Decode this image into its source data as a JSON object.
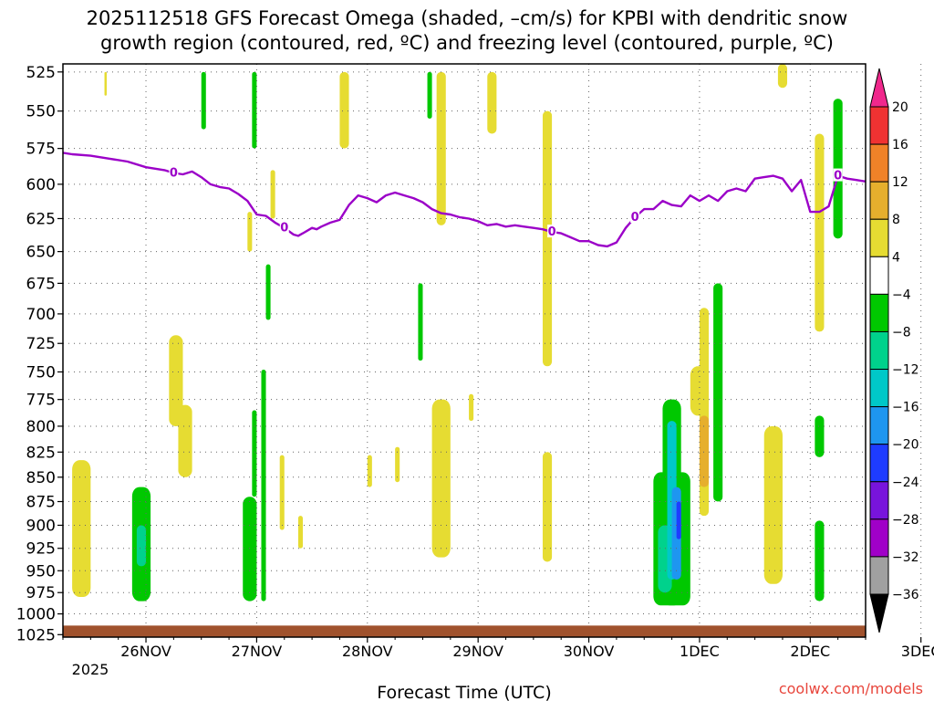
{
  "chart_data": {
    "type": "heatmap",
    "title_lines": [
      "2025112518 GFS Forecast Omega (shaded, –cm/s) for KPBI with dendritic snow",
      "growth region (contoured, red, ºC) and freezing level (contoured, purple, ºC)"
    ],
    "xlabel": "Forecast Time (UTC)",
    "credit": "coolwx.com/models",
    "x_ticks": [
      "26NOV",
      "27NOV",
      "28NOV",
      "29NOV",
      "30NOV",
      "1DEC",
      "2DEC",
      "3DEC"
    ],
    "x_tick_year": "2025",
    "x_range_hours_since_26NOV_00Z": [
      -18,
      156
    ],
    "y_ticks": [
      525,
      550,
      575,
      600,
      625,
      650,
      675,
      700,
      725,
      750,
      775,
      800,
      825,
      850,
      875,
      900,
      925,
      950,
      975,
      1000,
      1025
    ],
    "y_range_hPa": [
      520,
      1028
    ],
    "y_scale": "log-pressure (inverted)",
    "grid": "dotted",
    "colorbar": {
      "labels": [
        "20",
        "16",
        "12",
        "8",
        "4",
        "−4",
        "−8",
        "−12",
        "−16",
        "−20",
        "−24",
        "−28",
        "−32",
        "−36"
      ],
      "bins": [
        {
          "range": [
            16,
            20
          ],
          "color": "#f03232"
        },
        {
          "range": [
            12,
            16
          ],
          "color": "#f08228"
        },
        {
          "range": [
            8,
            12
          ],
          "color": "#e6af2d"
        },
        {
          "range": [
            4,
            8
          ],
          "color": "#e6dc32"
        },
        {
          "range": [
            -4,
            4
          ],
          "color": "#ffffff"
        },
        {
          "range": [
            -8,
            -4
          ],
          "color": "#00c800"
        },
        {
          "range": [
            -12,
            -8
          ],
          "color": "#00d28c"
        },
        {
          "range": [
            -16,
            -12
          ],
          "color": "#00c8c8"
        },
        {
          "range": [
            -20,
            -16
          ],
          "color": "#1e96f0"
        },
        {
          "range": [
            -24,
            -20
          ],
          "color": "#1e3cff"
        },
        {
          "range": [
            -28,
            -24
          ],
          "color": "#7814dc"
        },
        {
          "range": [
            -32,
            -28
          ],
          "color": "#a000c8"
        },
        {
          "range": [
            -36,
            -32
          ],
          "color": "#a0a0a0"
        }
      ],
      "top_arrow_color": "#f0288c",
      "bottom_arrow_color": "#000000"
    },
    "freezing_level": {
      "label": "0",
      "color": "#9b00c8",
      "points": [
        [
          -18,
          578
        ],
        [
          -16,
          579
        ],
        [
          -12,
          580
        ],
        [
          -8,
          582
        ],
        [
          -4,
          584
        ],
        [
          0,
          588
        ],
        [
          4,
          590
        ],
        [
          6,
          592
        ],
        [
          8,
          593
        ],
        [
          10,
          591
        ],
        [
          12,
          595
        ],
        [
          14,
          600
        ],
        [
          16,
          602
        ],
        [
          18,
          603
        ],
        [
          20,
          607
        ],
        [
          22,
          612
        ],
        [
          24,
          622
        ],
        [
          26,
          623
        ],
        [
          28,
          628
        ],
        [
          30,
          632
        ],
        [
          32,
          637
        ],
        [
          33,
          638
        ],
        [
          34,
          636
        ],
        [
          36,
          632
        ],
        [
          37,
          633
        ],
        [
          38,
          631
        ],
        [
          40,
          628
        ],
        [
          42,
          626
        ],
        [
          44,
          615
        ],
        [
          46,
          608
        ],
        [
          48,
          610
        ],
        [
          50,
          613
        ],
        [
          52,
          608
        ],
        [
          54,
          606
        ],
        [
          56,
          608
        ],
        [
          58,
          610
        ],
        [
          60,
          613
        ],
        [
          62,
          618
        ],
        [
          64,
          621
        ],
        [
          66,
          622
        ],
        [
          68,
          624
        ],
        [
          70,
          625
        ],
        [
          72,
          627
        ],
        [
          74,
          630
        ],
        [
          76,
          629
        ],
        [
          78,
          631
        ],
        [
          80,
          630
        ],
        [
          82,
          631
        ],
        [
          84,
          632
        ],
        [
          86,
          633
        ],
        [
          88,
          635
        ],
        [
          90,
          636
        ],
        [
          92,
          639
        ],
        [
          94,
          642
        ],
        [
          96,
          642
        ],
        [
          98,
          645
        ],
        [
          100,
          646
        ],
        [
          102,
          643
        ],
        [
          104,
          632
        ],
        [
          106,
          624
        ],
        [
          108,
          618
        ],
        [
          110,
          618
        ],
        [
          112,
          612
        ],
        [
          114,
          615
        ],
        [
          116,
          616
        ],
        [
          118,
          608
        ],
        [
          120,
          612
        ],
        [
          122,
          608
        ],
        [
          124,
          612
        ],
        [
          126,
          605
        ],
        [
          128,
          603
        ],
        [
          130,
          605
        ],
        [
          132,
          596
        ],
        [
          134,
          595
        ],
        [
          136,
          594
        ],
        [
          138,
          596
        ],
        [
          140,
          605
        ],
        [
          142,
          597
        ],
        [
          144,
          620
        ],
        [
          146,
          620
        ],
        [
          148,
          616
        ],
        [
          150,
          594
        ],
        [
          152,
          596
        ],
        [
          154,
          597
        ],
        [
          156,
          598
        ]
      ]
    },
    "omega_patches": [
      {
        "t": [
          -16,
          -12
        ],
        "p": [
          833,
          980
        ],
        "value": 6
      },
      {
        "t": [
          -9,
          -8.5
        ],
        "p": [
          525,
          540
        ],
        "value": 6
      },
      {
        "t": [
          5,
          8
        ],
        "p": [
          718,
          800
        ],
        "value": 6
      },
      {
        "t": [
          7,
          10
        ],
        "p": [
          780,
          850
        ],
        "value": 6
      },
      {
        "t": [
          -3,
          1
        ],
        "p": [
          860,
          985
        ],
        "value": -6
      },
      {
        "t": [
          -2,
          0
        ],
        "p": [
          900,
          945
        ],
        "value": -10
      },
      {
        "t": [
          12,
          13
        ],
        "p": [
          525,
          562
        ],
        "value": -6
      },
      {
        "t": [
          23,
          24
        ],
        "p": [
          525,
          575
        ],
        "value": -6
      },
      {
        "t": [
          21,
          24
        ],
        "p": [
          870,
          985
        ],
        "value": -6
      },
      {
        "t": [
          23,
          24
        ],
        "p": [
          785,
          870
        ],
        "value": -6
      },
      {
        "t": [
          25,
          26
        ],
        "p": [
          748,
          985
        ],
        "value": -6
      },
      {
        "t": [
          22,
          23
        ],
        "p": [
          620,
          650
        ],
        "value": 6
      },
      {
        "t": [
          26,
          27
        ],
        "p": [
          660,
          705
        ],
        "value": -6
      },
      {
        "t": [
          27,
          28
        ],
        "p": [
          590,
          625
        ],
        "value": 6
      },
      {
        "t": [
          29,
          30
        ],
        "p": [
          828,
          905
        ],
        "value": 6
      },
      {
        "t": [
          33,
          34
        ],
        "p": [
          890,
          925
        ],
        "value": 6
      },
      {
        "t": [
          42,
          44
        ],
        "p": [
          525,
          575
        ],
        "value": 6
      },
      {
        "t": [
          48,
          49
        ],
        "p": [
          828,
          860
        ],
        "value": 6
      },
      {
        "t": [
          54,
          55
        ],
        "p": [
          820,
          855
        ],
        "value": 6
      },
      {
        "t": [
          61,
          62
        ],
        "p": [
          525,
          555
        ],
        "value": -6
      },
      {
        "t": [
          59,
          60
        ],
        "p": [
          675,
          740
        ],
        "value": -6
      },
      {
        "t": [
          63,
          65
        ],
        "p": [
          525,
          630
        ],
        "value": 6
      },
      {
        "t": [
          62,
          66
        ],
        "p": [
          775,
          935
        ],
        "value": 6
      },
      {
        "t": [
          70,
          71
        ],
        "p": [
          770,
          795
        ],
        "value": 6
      },
      {
        "t": [
          74,
          76
        ],
        "p": [
          525,
          565
        ],
        "value": 6
      },
      {
        "t": [
          86,
          88
        ],
        "p": [
          550,
          745
        ],
        "value": 6
      },
      {
        "t": [
          86,
          88
        ],
        "p": [
          825,
          940
        ],
        "value": 6
      },
      {
        "t": [
          110,
          118
        ],
        "p": [
          845,
          990
        ],
        "value": -6
      },
      {
        "t": [
          112,
          116
        ],
        "p": [
          775,
          990
        ],
        "value": -6
      },
      {
        "t": [
          111,
          114
        ],
        "p": [
          900,
          975
        ],
        "value": -10
      },
      {
        "t": [
          113,
          115
        ],
        "p": [
          795,
          960
        ],
        "value": -14
      },
      {
        "t": [
          114,
          116
        ],
        "p": [
          860,
          960
        ],
        "value": -18
      },
      {
        "t": [
          115,
          116
        ],
        "p": [
          875,
          915
        ],
        "value": -22
      },
      {
        "t": [
          118,
          122
        ],
        "p": [
          745,
          790
        ],
        "value": 6
      },
      {
        "t": [
          120,
          122
        ],
        "p": [
          695,
          890
        ],
        "value": 6
      },
      {
        "t": [
          120,
          122
        ],
        "p": [
          790,
          860
        ],
        "value": 10
      },
      {
        "t": [
          123,
          125
        ],
        "p": [
          675,
          875
        ],
        "value": -6
      },
      {
        "t": [
          134,
          138
        ],
        "p": [
          800,
          965
        ],
        "value": 6
      },
      {
        "t": [
          137,
          139
        ],
        "p": [
          520,
          535
        ],
        "value": 6
      },
      {
        "t": [
          145,
          147
        ],
        "p": [
          565,
          715
        ],
        "value": 6
      },
      {
        "t": [
          145,
          147
        ],
        "p": [
          895,
          985
        ],
        "value": -6
      },
      {
        "t": [
          145,
          147
        ],
        "p": [
          790,
          830
        ],
        "value": -6
      },
      {
        "t": [
          149,
          151
        ],
        "p": [
          542,
          640
        ],
        "value": -6
      }
    ]
  }
}
